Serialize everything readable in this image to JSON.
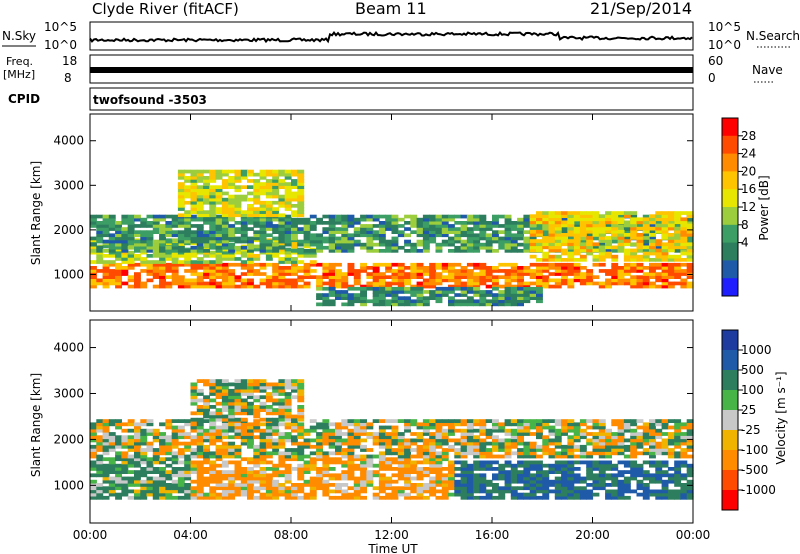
{
  "header": {
    "station": "Clyde River (fitACF)",
    "beam": "Beam 11",
    "date": "21/Sep/2014"
  },
  "summary_panels": {
    "nsky": {
      "label": "N.Sky",
      "ticks": [
        "10^5",
        "10^0"
      ]
    },
    "nsearch": {
      "label": "N.Search",
      "ticks": [
        "10^5",
        "10^0"
      ]
    },
    "freq": {
      "label_line1": "Freq.",
      "label_line2": "[MHz]",
      "ticks": [
        "18",
        "8"
      ]
    },
    "nave": {
      "label": "Nave",
      "ticks": [
        "60",
        "0"
      ]
    },
    "cpid": {
      "label": "CPID",
      "value": "twofsound -3503"
    }
  },
  "chart_data": [
    {
      "type": "heatmap",
      "title": "",
      "xlabel": "",
      "ylabel": "Slant Range [km]",
      "xlim": [
        0,
        24
      ],
      "ylim": [
        180,
        4600
      ],
      "x_ticks": [
        "00:00",
        "04:00",
        "08:00",
        "12:00",
        "16:00",
        "20:00",
        "00:00"
      ],
      "y_ticks": [
        "1000",
        "2000",
        "3000",
        "4000"
      ],
      "colorbar": {
        "label": "Power [dB]",
        "ticks": [
          "28",
          "24",
          "20",
          "16",
          "12",
          "8",
          "4"
        ],
        "range": [
          0,
          30
        ],
        "colors": [
          "#ff0000",
          "#ff4b00",
          "#ff8c00",
          "#ffc400",
          "#e6e600",
          "#9ccd3c",
          "#3c9e64",
          "#2d7e5e",
          "#1f5aa8",
          "#1e1eff"
        ]
      },
      "echo_regions": [
        {
          "t0": 0.0,
          "t1": 24.0,
          "r0": 700,
          "r1": 1250,
          "value": 24
        },
        {
          "t0": 0.0,
          "t1": 9.0,
          "r0": 1250,
          "r1": 1800,
          "value": 14
        },
        {
          "t0": 0.0,
          "t1": 24.0,
          "r0": 1500,
          "r1": 2300,
          "value": 9
        },
        {
          "t0": 3.5,
          "t1": 8.5,
          "r0": 2300,
          "r1": 3300,
          "value": 16
        },
        {
          "t0": 9.0,
          "t1": 18.0,
          "r0": 300,
          "r1": 700,
          "value": 8
        },
        {
          "t0": 17.5,
          "t1": 24.0,
          "r0": 1300,
          "r1": 2400,
          "value": 18
        }
      ]
    },
    {
      "type": "heatmap",
      "title": "",
      "xlabel": "Time UT",
      "ylabel": "Slant Range [km]",
      "xlim": [
        0,
        24
      ],
      "ylim": [
        180,
        4600
      ],
      "x_ticks": [
        "00:00",
        "04:00",
        "08:00",
        "12:00",
        "16:00",
        "20:00",
        "00:00"
      ],
      "y_ticks": [
        "1000",
        "2000",
        "3000",
        "4000"
      ],
      "colorbar": {
        "label": "Velocity [m s⁻¹]",
        "ticks": [
          "1000",
          "500",
          "100",
          "25",
          "-25",
          "-100",
          "-500",
          "-1000"
        ],
        "colors": [
          "#1e3ca0",
          "#1f5aa8",
          "#2d7e5e",
          "#46b446",
          "#c8c8c8",
          "#f0b400",
          "#ff8c00",
          "#ff4b00",
          "#ff0000"
        ]
      },
      "echo_regions": [
        {
          "t0": 0.0,
          "t1": 4.0,
          "r0": 700,
          "r1": 1600,
          "value": 100
        },
        {
          "t0": 4.0,
          "t1": 14.5,
          "r0": 700,
          "r1": 1600,
          "value": -100
        },
        {
          "t0": 14.5,
          "t1": 24.0,
          "r0": 700,
          "r1": 1500,
          "value": 300
        },
        {
          "t0": 0.0,
          "t1": 24.0,
          "r0": 1600,
          "r1": 2400,
          "value": 0
        },
        {
          "t0": 4.0,
          "t1": 8.5,
          "r0": 2400,
          "r1": 3300,
          "value": 0
        }
      ]
    }
  ]
}
